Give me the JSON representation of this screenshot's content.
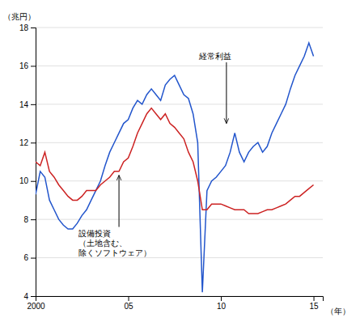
{
  "chart_data": {
    "type": "line",
    "x": [
      2000.0,
      2000.25,
      2000.5,
      2000.75,
      2001.0,
      2001.25,
      2001.5,
      2001.75,
      2002.0,
      2002.25,
      2002.5,
      2002.75,
      2003.0,
      2003.25,
      2003.5,
      2003.75,
      2004.0,
      2004.25,
      2004.5,
      2004.75,
      2005.0,
      2005.25,
      2005.5,
      2005.75,
      2006.0,
      2006.25,
      2006.5,
      2006.75,
      2007.0,
      2007.25,
      2007.5,
      2007.75,
      2008.0,
      2008.25,
      2008.5,
      2008.75,
      2009.0,
      2009.25,
      2009.5,
      2009.75,
      2010.0,
      2010.25,
      2010.5,
      2010.75,
      2011.0,
      2011.25,
      2011.5,
      2011.75,
      2012.0,
      2012.25,
      2012.5,
      2012.75,
      2013.0,
      2013.25,
      2013.5,
      2013.75,
      2014.0,
      2014.25,
      2014.5,
      2014.75,
      2015.0
    ],
    "series": [
      {
        "color": "#2255cc",
        "values": [
          9.3,
          10.5,
          10.2,
          9.0,
          8.5,
          8.0,
          7.7,
          7.5,
          7.5,
          7.8,
          8.2,
          8.5,
          9.0,
          9.5,
          10.0,
          10.8,
          11.5,
          12.0,
          12.5,
          13.0,
          13.2,
          13.8,
          14.2,
          14.0,
          14.5,
          14.8,
          14.5,
          14.2,
          15.0,
          15.3,
          15.5,
          15.0,
          14.5,
          14.3,
          13.5,
          12.0,
          4.2,
          9.5,
          10.0,
          10.2,
          10.5,
          10.8,
          11.5,
          12.5,
          11.5,
          11.0,
          11.5,
          11.8,
          12.0,
          11.5,
          11.8,
          12.5,
          13.0,
          13.5,
          14.0,
          14.8,
          15.5,
          16.0,
          16.5,
          17.2,
          16.5
        ]
      },
      {
        "color": "#cc2222",
        "values": [
          11.0,
          10.8,
          11.5,
          10.5,
          10.2,
          9.8,
          9.5,
          9.2,
          9.0,
          9.0,
          9.2,
          9.5,
          9.5,
          9.5,
          9.8,
          10.0,
          10.2,
          10.5,
          10.5,
          11.0,
          11.2,
          11.8,
          12.5,
          13.0,
          13.5,
          13.8,
          13.5,
          13.2,
          13.5,
          13.0,
          12.8,
          12.5,
          12.2,
          11.5,
          11.0,
          10.0,
          8.5,
          8.5,
          8.8,
          8.8,
          8.8,
          8.7,
          8.6,
          8.5,
          8.5,
          8.5,
          8.3,
          8.3,
          8.3,
          8.4,
          8.5,
          8.5,
          8.6,
          8.7,
          8.8,
          9.0,
          9.2,
          9.2,
          9.4,
          9.6,
          9.8
        ]
      }
    ],
    "y_label": "（兆円）",
    "x_label": "（年）",
    "xlim": [
      2000,
      2015.5
    ],
    "xticks": [
      2000,
      {
        "value": 2005,
        "label": "05"
      },
      {
        "value": 2010,
        "label": "10"
      },
      {
        "value": 2015,
        "label": "15"
      }
    ],
    "ylim": [
      4,
      18
    ],
    "yticks": [
      4,
      6,
      8,
      10,
      12,
      14,
      16,
      18
    ],
    "grid": "y",
    "annotations": [
      {
        "text": "経常利益",
        "xy": [
          2010.3,
          13.0
        ],
        "xytext": [
          2008.8,
          16.5
        ]
      },
      {
        "text": "設備投資\n（土地含む、\n除くソフトウェア）",
        "xy": [
          2004.5,
          10.3
        ],
        "xytext": [
          2002.3,
          7.5
        ]
      }
    ]
  }
}
